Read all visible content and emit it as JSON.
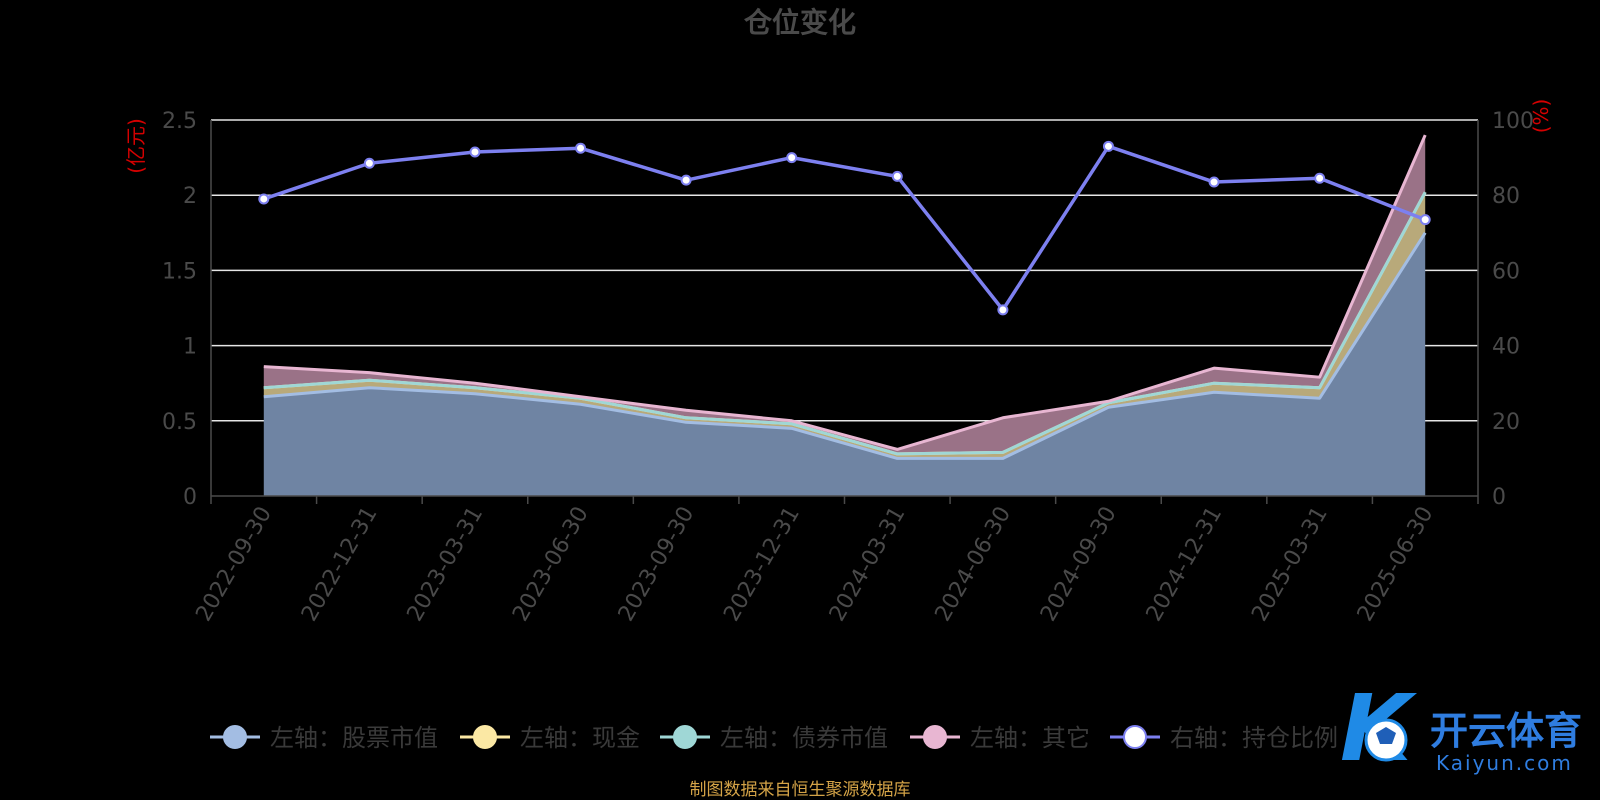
{
  "chart_data": {
    "type": "area",
    "title": "仓位变化",
    "left_axis": {
      "unit": "(亿元)",
      "min": 0,
      "max": 2.5,
      "ticks": [
        "0",
        "0.5",
        "1",
        "1.5",
        "2",
        "2.5"
      ]
    },
    "right_axis": {
      "unit": "(%)",
      "min": 0,
      "max": 100,
      "ticks": [
        "0",
        "20",
        "40",
        "60",
        "80",
        "100"
      ]
    },
    "categories": [
      "2022-09-30",
      "2022-12-31",
      "2023-03-31",
      "2023-06-30",
      "2023-09-30",
      "2023-12-31",
      "2024-03-31",
      "2024-06-30",
      "2024-09-30",
      "2024-12-31",
      "2025-03-31",
      "2025-06-30"
    ],
    "series": [
      {
        "name": "左轴：股票市值",
        "axis": "left",
        "stack": true,
        "color": "#a3bde3",
        "fill": "#6f84a3",
        "values": [
          0.66,
          0.72,
          0.68,
          0.61,
          0.49,
          0.45,
          0.25,
          0.25,
          0.59,
          0.69,
          0.65,
          1.75
        ]
      },
      {
        "name": "左轴：现金",
        "axis": "left",
        "stack": true,
        "color": "#fbe8a4",
        "fill": "#b8a97a",
        "values": [
          0.06,
          0.05,
          0.04,
          0.04,
          0.03,
          0.03,
          0.03,
          0.04,
          0.03,
          0.06,
          0.07,
          0.27
        ]
      },
      {
        "name": "左轴：债券市值",
        "axis": "left",
        "stack": true,
        "color": "#9fd7d6",
        "fill": "#88aeb0",
        "values": [
          0,
          0,
          0,
          0,
          0,
          0,
          0,
          0,
          0,
          0,
          0,
          0
        ]
      },
      {
        "name": "左轴：其它",
        "axis": "left",
        "stack": true,
        "color": "#e8b6d2",
        "fill": "#9a7287",
        "values": [
          0.14,
          0.05,
          0.03,
          0.01,
          0.05,
          0.02,
          0.03,
          0.23,
          0.01,
          0.1,
          0.07,
          0.38
        ]
      },
      {
        "name": "右轴：持仓比例",
        "axis": "right",
        "stack": false,
        "color": "#7d80f0",
        "fill": "none",
        "values": [
          79,
          88.5,
          91.5,
          92.5,
          84,
          90,
          85,
          49.5,
          93,
          83.5,
          84.5,
          73.5
        ]
      }
    ],
    "legend_position": "bottom",
    "grid": true
  },
  "footer": {
    "source": "制图数据来自恒生聚源数据库"
  },
  "watermark": {
    "cn": "开云体育",
    "en": "Kaiyun.com",
    "logo": "K"
  }
}
